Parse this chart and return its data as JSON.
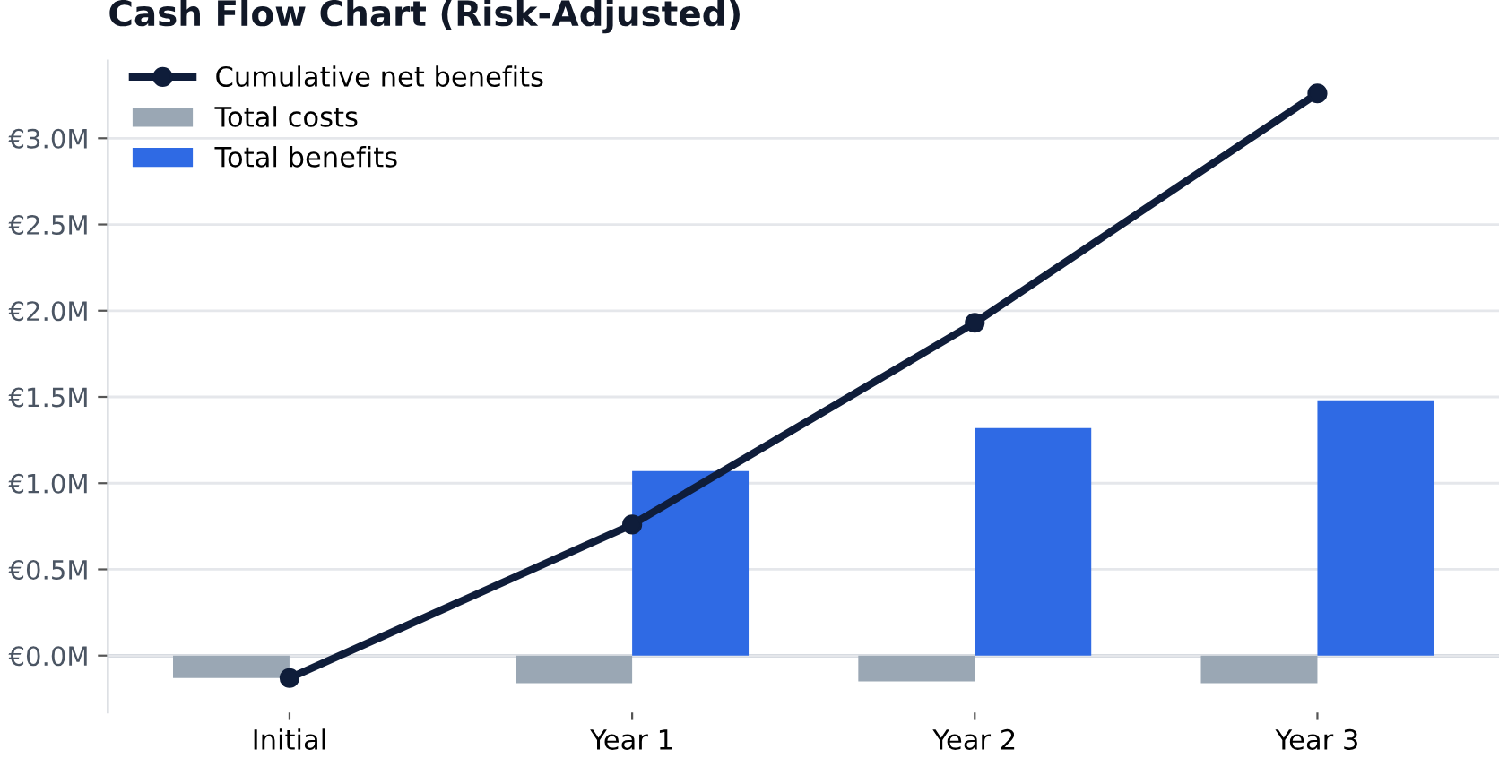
{
  "chart_data": {
    "type": "bar",
    "title": "Cash Flow Chart (Risk-Adjusted)",
    "categories": [
      "Initial",
      "Year 1",
      "Year 2",
      "Year 3"
    ],
    "series": [
      {
        "name": "Cumulative net benefits",
        "type": "line",
        "color": "#0f1d3a",
        "values": [
          -0.13,
          0.76,
          1.93,
          3.26
        ],
        "marker": "circle"
      },
      {
        "name": "Total costs",
        "color": "#9aa7b4",
        "values": [
          -0.13,
          -0.16,
          -0.15,
          -0.16
        ]
      },
      {
        "name": "Total benefits",
        "color": "#2f6ae4",
        "values": [
          0,
          1.07,
          1.32,
          1.48
        ]
      }
    ],
    "ylim": [
      -0.33,
      3.45
    ],
    "yticks": [
      {
        "value": 0,
        "label": "€0.0M"
      },
      {
        "value": 0.5,
        "label": "€0.5M"
      },
      {
        "value": 1,
        "label": "€1.0M"
      },
      {
        "value": 1.5,
        "label": "€1.5M"
      },
      {
        "value": 2,
        "label": "€2.0M"
      },
      {
        "value": 2.5,
        "label": "€2.5M"
      },
      {
        "value": 3,
        "label": "€3.0M"
      }
    ],
    "grid": "y",
    "legend": "top left"
  }
}
